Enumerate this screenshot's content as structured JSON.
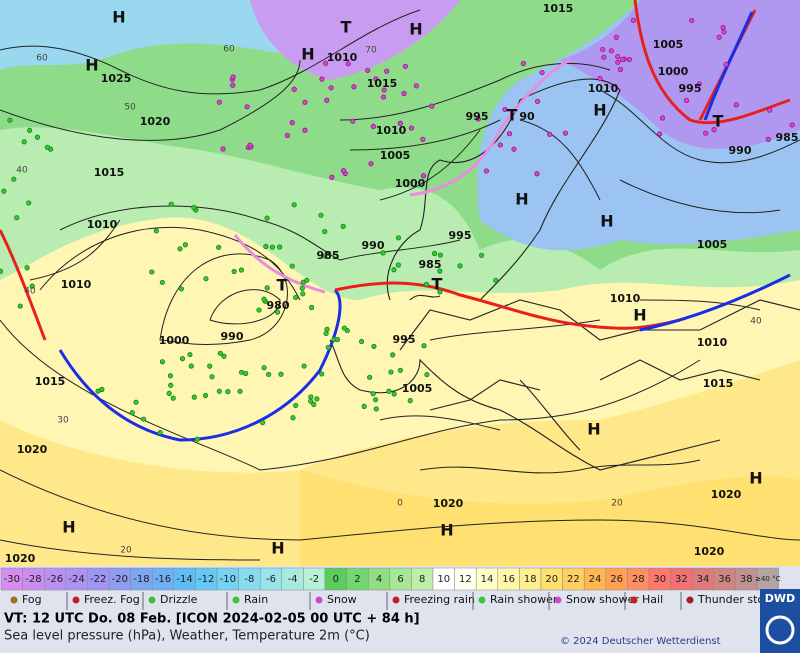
{
  "map": {
    "pressure_labels": [
      "1015",
      "1010",
      "1015",
      "1025",
      "1020",
      "1015",
      "1010",
      "1005",
      "1000",
      "995",
      "90",
      "1010",
      "1005",
      "1000",
      "995",
      "990",
      "985",
      "1005",
      "1010",
      "1010",
      "1000",
      "990",
      "980",
      "985",
      "990",
      "995",
      "985",
      "995",
      "1005",
      "1010",
      "1010",
      "1015",
      "1015",
      "1020",
      "1020",
      "1020",
      "1020",
      "1020"
    ],
    "high_low_labels": [
      "H",
      "H",
      "T",
      "H",
      "H",
      "H",
      "T",
      "H",
      "H",
      "T",
      "T",
      "T",
      "H",
      "H",
      "H",
      "H",
      "H",
      "H"
    ],
    "temperature_labels": [
      "60",
      "50",
      "40",
      "60",
      "70",
      "40",
      "30",
      "40",
      "0",
      "20",
      "20"
    ]
  },
  "legend": {
    "temperature_scale": [
      {
        "value": -30,
        "color": "#d68cf0"
      },
      {
        "value": -28,
        "color": "#ca8ef2"
      },
      {
        "value": -26,
        "color": "#bc90f2"
      },
      {
        "value": -24,
        "color": "#ae92f2"
      },
      {
        "value": -22,
        "color": "#a096f2"
      },
      {
        "value": -20,
        "color": "#8e9cf2"
      },
      {
        "value": -18,
        "color": "#7ea6f2"
      },
      {
        "value": -16,
        "color": "#6eb0f4"
      },
      {
        "value": -14,
        "color": "#62bcf4"
      },
      {
        "value": -12,
        "color": "#66c8f4"
      },
      {
        "value": -10,
        "color": "#76d2f2"
      },
      {
        "value": -8,
        "color": "#88dcee"
      },
      {
        "value": -6,
        "color": "#98e4e8"
      },
      {
        "value": -4,
        "color": "#a8eae0"
      },
      {
        "value": -2,
        "color": "#b8f0d8"
      },
      {
        "value": 0,
        "color": "#5ccc5c"
      },
      {
        "value": 2,
        "color": "#74d670"
      },
      {
        "value": 4,
        "color": "#8ede82"
      },
      {
        "value": 6,
        "color": "#a6e694"
      },
      {
        "value": 8,
        "color": "#c0eeaa"
      },
      {
        "value": 10,
        "color": "#ffffff"
      },
      {
        "value": 12,
        "color": "#fffff0"
      },
      {
        "value": 14,
        "color": "#ffffcc"
      },
      {
        "value": 16,
        "color": "#fff6aa"
      },
      {
        "value": 18,
        "color": "#ffee90"
      },
      {
        "value": 20,
        "color": "#ffe070"
      },
      {
        "value": 22,
        "color": "#ffd060"
      },
      {
        "value": 24,
        "color": "#ffb850"
      },
      {
        "value": 26,
        "color": "#ffa052"
      },
      {
        "value": 28,
        "color": "#ff8e62"
      },
      {
        "value": 30,
        "color": "#ff786a"
      },
      {
        "value": 32,
        "color": "#f07272"
      },
      {
        "value": 34,
        "color": "#e07a7a"
      },
      {
        "value": 36,
        "color": "#d08484"
      },
      {
        "value": 38,
        "color": "#c09292"
      },
      {
        "value": 40,
        "label": "≥40 °C",
        "color": "#b4a4a4"
      }
    ],
    "weather": [
      "Fog",
      "Freez. Fog",
      "Drizzle",
      "Rain",
      "Snow",
      "Freezing rain",
      "Rain shower",
      "Snow shower",
      "Hail",
      "Thunder storm"
    ]
  },
  "footer": {
    "valid_time": "VT: 12 UTC Do.  08 Feb. [ICON 2024-02-05  00 UTC + 84 h]",
    "description": "Sea level pressure (hPa), Weather, Temperature 2m (°C)",
    "copyright": "© 2024 Deutscher Wetterdienst",
    "logo": "DWD"
  }
}
